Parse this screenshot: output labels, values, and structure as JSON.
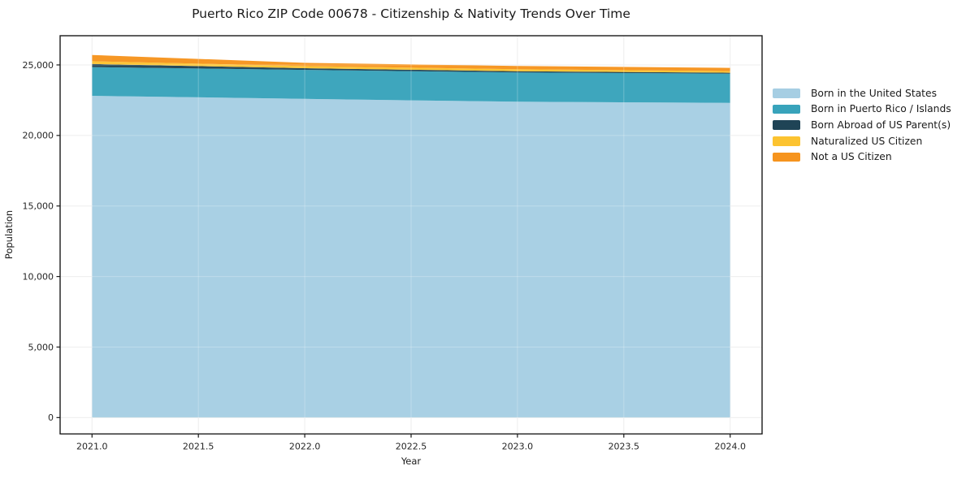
{
  "chart_data": {
    "type": "area",
    "stacked": true,
    "title": "Puerto Rico ZIP Code 00678 - Citizenship & Nativity Trends Over Time",
    "xlabel": "Year",
    "ylabel": "Population",
    "x": [
      2021,
      2022,
      2023,
      2024
    ],
    "series": [
      {
        "name": "Born in the United States",
        "color": "#a6cee3",
        "values": [
          22810,
          22590,
          22390,
          22310
        ]
      },
      {
        "name": "Born in Puerto Rico / Islands",
        "color": "#38a3bb",
        "values": [
          2030,
          2055,
          2070,
          2075
        ]
      },
      {
        "name": "Born Abroad of US Parent(s)",
        "color": "#1f4456",
        "values": [
          230,
          120,
          90,
          60
        ]
      },
      {
        "name": "Naturalized US Citizen",
        "color": "#fcc330",
        "values": [
          195,
          150,
          145,
          115
        ]
      },
      {
        "name": "Not a US Citizen",
        "color": "#f6941e",
        "values": [
          440,
          230,
          230,
          230
        ]
      }
    ],
    "totals": [
      25705,
      25145,
      24925,
      24790
    ],
    "xticks": [
      {
        "value": 2021.0,
        "label": "2021.0"
      },
      {
        "value": 2021.5,
        "label": "2021.5"
      },
      {
        "value": 2022.0,
        "label": "2022.0"
      },
      {
        "value": 2022.5,
        "label": "2022.5"
      },
      {
        "value": 2023.0,
        "label": "2023.0"
      },
      {
        "value": 2023.5,
        "label": "2023.5"
      },
      {
        "value": 2024.0,
        "label": "2024.0"
      }
    ],
    "yticks": [
      {
        "value": 0,
        "label": "0"
      },
      {
        "value": 5000,
        "label": "5,000"
      },
      {
        "value": 10000,
        "label": "10,000"
      },
      {
        "value": 15000,
        "label": "15,000"
      },
      {
        "value": 20000,
        "label": "20,000"
      },
      {
        "value": 25000,
        "label": "25,000"
      }
    ],
    "xlim": [
      2020.85,
      2024.15
    ],
    "ylim": [
      -1160,
      27070
    ],
    "grid": true,
    "legend_position": "right",
    "colors": {
      "grid": "#e9e9e9",
      "spine": "#1a1a1a",
      "text": "#1a1a1a",
      "background": "#ffffff"
    }
  }
}
